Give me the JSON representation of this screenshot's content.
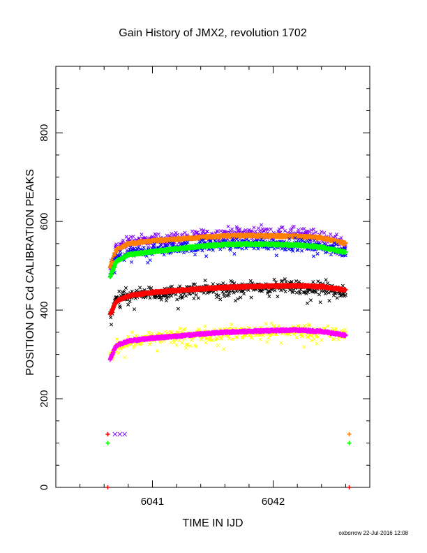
{
  "chart_data": {
    "type": "scatter",
    "title": "Gain History of JMX2, revolution 1702",
    "xlabel": "TIME IN IJD",
    "ylabel": "POSITION OF Cd CALIBRATION PEAKS",
    "credit": "oxborrow 22-Jul-2016 12:08",
    "xlim": [
      6040.2,
      6042.8
    ],
    "ylim": [
      0,
      950
    ],
    "x_ticks": [
      {
        "value": 6041,
        "label": "6041"
      },
      {
        "value": 6042,
        "label": "6042"
      }
    ],
    "y_ticks": [
      {
        "value": 0,
        "label": "0"
      },
      {
        "value": 200,
        "label": "200"
      },
      {
        "value": 400,
        "label": "400"
      },
      {
        "value": 600,
        "label": "600"
      },
      {
        "value": 800,
        "label": "800"
      }
    ],
    "series": [
      {
        "color": "#8000ff",
        "marker": "x",
        "noise": 13,
        "x": [
          6040.65,
          6040.7,
          6040.8,
          6041.0,
          6041.2,
          6041.4,
          6041.6,
          6041.8,
          6042.0,
          6042.2,
          6042.4,
          6042.6
        ],
        "y": [
          492,
          540,
          556,
          557,
          562,
          567,
          572,
          574,
          573,
          572,
          566,
          550
        ]
      },
      {
        "color": "#ff8000",
        "marker": "cross",
        "noise": 2,
        "x": [
          6040.65,
          6040.7,
          6040.8,
          6041.0,
          6041.2,
          6041.4,
          6041.6,
          6041.8,
          6042.0,
          6042.2,
          6042.4,
          6042.6
        ],
        "y": [
          495,
          535,
          550,
          556,
          560,
          564,
          567,
          568,
          567,
          566,
          563,
          550
        ]
      },
      {
        "color": "#0000ff",
        "marker": "x",
        "noise": 11,
        "x": [
          6040.65,
          6040.7,
          6040.8,
          6041.0,
          6041.2,
          6041.4,
          6041.6,
          6041.8,
          6042.0,
          6042.2,
          6042.4,
          6042.6
        ],
        "y": [
          478,
          515,
          528,
          536,
          540,
          545,
          548,
          550,
          549,
          548,
          543,
          530
        ]
      },
      {
        "color": "#00ff00",
        "marker": "cross",
        "noise": 2,
        "x": [
          6040.65,
          6040.7,
          6040.8,
          6041.0,
          6041.2,
          6041.4,
          6041.6,
          6041.8,
          6042.0,
          6042.2,
          6042.4,
          6042.6
        ],
        "y": [
          475,
          510,
          525,
          532,
          538,
          544,
          548,
          549,
          548,
          547,
          542,
          530
        ]
      },
      {
        "color": "#000000",
        "marker": "x",
        "noise": 14,
        "x": [
          6040.65,
          6040.7,
          6040.8,
          6041.0,
          6041.2,
          6041.4,
          6041.6,
          6041.8,
          6042.0,
          6042.2,
          6042.4,
          6042.6
        ],
        "y": [
          390,
          425,
          433,
          438,
          440,
          445,
          448,
          450,
          452,
          453,
          450,
          443
        ]
      },
      {
        "color": "#ff0000",
        "marker": "cross",
        "noise": 2,
        "x": [
          6040.65,
          6040.7,
          6040.8,
          6041.0,
          6041.2,
          6041.4,
          6041.6,
          6041.8,
          6042.0,
          6042.2,
          6042.4,
          6042.6
        ],
        "y": [
          390,
          420,
          432,
          440,
          444,
          448,
          451,
          453,
          454,
          455,
          453,
          445
        ]
      },
      {
        "color": "#ffff00",
        "marker": "x",
        "noise": 14,
        "x": [
          6040.65,
          6040.7,
          6040.8,
          6041.0,
          6041.2,
          6041.4,
          6041.6,
          6041.8,
          6042.0,
          6042.2,
          6042.4,
          6042.6
        ],
        "y": [
          292,
          318,
          330,
          337,
          340,
          345,
          348,
          350,
          352,
          353,
          350,
          343
        ]
      },
      {
        "color": "#ff00ff",
        "marker": "cross",
        "noise": 2,
        "x": [
          6040.65,
          6040.7,
          6040.8,
          6041.0,
          6041.2,
          6041.4,
          6041.6,
          6041.8,
          6042.0,
          6042.2,
          6042.4,
          6042.6
        ],
        "y": [
          290,
          320,
          330,
          337,
          341,
          346,
          350,
          352,
          354,
          355,
          352,
          343
        ]
      }
    ],
    "extra_markers": [
      {
        "color": "#ff8000",
        "marker": "cross",
        "x": 6040.63,
        "y": 120
      },
      {
        "color": "#ff0000",
        "marker": "cross",
        "x": 6040.63,
        "y": 120
      },
      {
        "color": "#8000ff",
        "marker": "x",
        "x": 6040.69,
        "y": 120
      },
      {
        "color": "#8000ff",
        "marker": "x",
        "x": 6040.73,
        "y": 120
      },
      {
        "color": "#8000ff",
        "marker": "x",
        "x": 6040.77,
        "y": 120
      },
      {
        "color": "#00ff00",
        "marker": "cross",
        "x": 6040.63,
        "y": 100
      },
      {
        "color": "#ff8000",
        "marker": "cross",
        "x": 6042.63,
        "y": 120
      },
      {
        "color": "#00ff00",
        "marker": "cross",
        "x": 6042.63,
        "y": 100
      },
      {
        "color": "#ff0000",
        "marker": "cross",
        "x": 6040.63,
        "y": 0
      },
      {
        "color": "#ff0000",
        "marker": "cross",
        "x": 6042.63,
        "y": 0
      }
    ]
  }
}
